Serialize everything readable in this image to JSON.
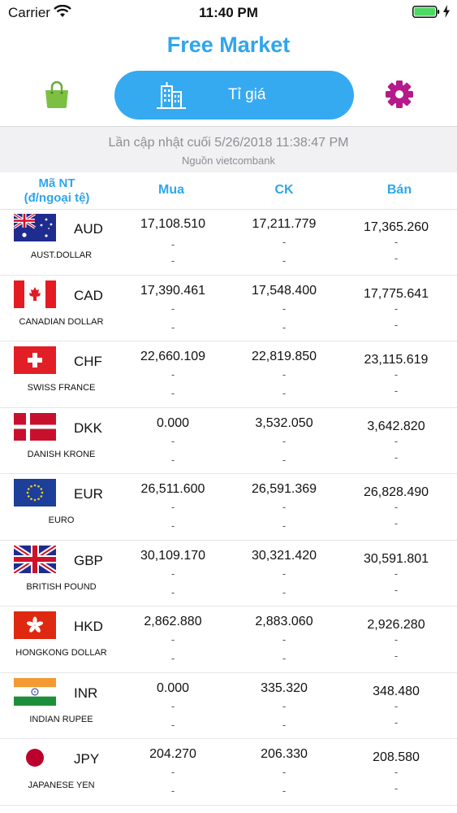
{
  "status_bar": {
    "carrier": "Carrier",
    "time": "11:40 PM"
  },
  "header": {
    "title": "Free Market",
    "tab_label": "Tỉ giá"
  },
  "update": {
    "last_updated": "Lần cập nhật cuối 5/26/2018 11:38:47 PM",
    "source": "Nguồn vietcombank"
  },
  "table": {
    "headers": {
      "code_line1": "Mã NT",
      "code_line2": "(đ/ngoại tệ)",
      "buy": "Mua",
      "ck": "CK",
      "sell": "Bán"
    },
    "dash": "-",
    "rows": [
      {
        "code": "AUD",
        "name": "AUST.DOLLAR",
        "buy": "17,108.510",
        "ck": "17,211.779",
        "sell": "17,365.260"
      },
      {
        "code": "CAD",
        "name": "CANADIAN DOLLAR",
        "buy": "17,390.461",
        "ck": "17,548.400",
        "sell": "17,775.641"
      },
      {
        "code": "CHF",
        "name": "SWISS FRANCE",
        "buy": "22,660.109",
        "ck": "22,819.850",
        "sell": "23,115.619"
      },
      {
        "code": "DKK",
        "name": "DANISH KRONE",
        "buy": "0.000",
        "ck": "3,532.050",
        "sell": "3,642.820"
      },
      {
        "code": "EUR",
        "name": "EURO",
        "buy": "26,511.600",
        "ck": "26,591.369",
        "sell": "26,828.490"
      },
      {
        "code": "GBP",
        "name": "BRITISH POUND",
        "buy": "30,109.170",
        "ck": "30,321.420",
        "sell": "30,591.801"
      },
      {
        "code": "HKD",
        "name": "HONGKONG DOLLAR",
        "buy": "2,862.880",
        "ck": "2,883.060",
        "sell": "2,926.280"
      },
      {
        "code": "INR",
        "name": "INDIAN RUPEE",
        "buy": "0.000",
        "ck": "335.320",
        "sell": "348.480"
      },
      {
        "code": "JPY",
        "name": "JAPANESE YEN",
        "buy": "204.270",
        "ck": "206.330",
        "sell": "208.580"
      }
    ]
  },
  "colors": {
    "accent": "#2ea6ec",
    "pill": "#36aaf0",
    "bag": "#7cc043",
    "gear": "#b5198b"
  },
  "icons": {
    "bag": "shopping-bag-icon",
    "building": "building-icon",
    "gear": "gear-icon",
    "wifi": "wifi-icon",
    "battery": "battery-icon"
  }
}
